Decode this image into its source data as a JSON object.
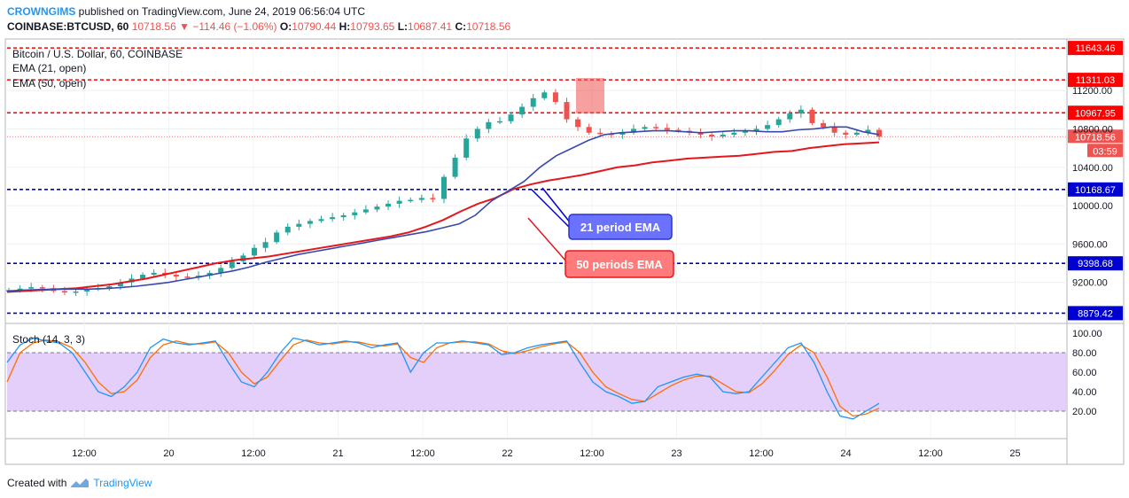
{
  "header": {
    "author": "CROWNGIMS",
    "published_text": "published on TradingView.com, June 24, 2019 06:56:04 UTC",
    "symbol": "COINBASE:BTCUSD, 60",
    "last": "10718.56",
    "arrow": "▼",
    "change": "−114.46 (−1.06%)",
    "o_label": "O:",
    "o_value": "10790.44",
    "h_label": "H:",
    "h_value": "10793.65",
    "l_label": "L:",
    "l_value": "10687.41",
    "c_label": "C:",
    "c_value": "10718.56"
  },
  "legend": {
    "title": "Bitcoin / U.S. Dollar, 60, COINBASE",
    "ema21": "EMA (21, open)",
    "ema50": "EMA (50, open)",
    "stoch": "Stoch (14, 3, 3)"
  },
  "annotations": {
    "ema21_label": "21 period EMA",
    "ema50_label": "50 periods EMA"
  },
  "footer": {
    "created_with": "Created with",
    "brand": "TradingView"
  },
  "colors": {
    "up": "#26a69a",
    "down": "#ef5350",
    "ema21": "#3949ab",
    "ema50": "#e5171d",
    "resistance": "#ff0000",
    "support": "#0000cc",
    "stoch_k": "#2196f3",
    "stoch_d": "#ff6d00",
    "stoch_band": "#e1c9fa"
  },
  "chart_data": [
    {
      "type": "candlestick",
      "timeframe": "60",
      "x_ticks": [
        "12:00",
        "20",
        "12:00",
        "21",
        "12:00",
        "22",
        "12:00",
        "23",
        "12:00",
        "24",
        "12:00",
        "25"
      ],
      "y_ticks": [
        9200.0,
        9600.0,
        10000.0,
        10400.0,
        10800.0,
        11200.0
      ],
      "ylim": [
        8800,
        11700
      ],
      "horizontal_levels": [
        {
          "value": 11643.46,
          "label": "11643.46",
          "kind": "resistance"
        },
        {
          "value": 11311.03,
          "label": "11311.03",
          "kind": "resistance"
        },
        {
          "value": 10967.95,
          "label": "10967.95",
          "kind": "resistance"
        },
        {
          "value": 10168.67,
          "label": "10168.67",
          "kind": "support"
        },
        {
          "value": 9398.68,
          "label": "9398.68",
          "kind": "support"
        },
        {
          "value": 8879.42,
          "label": "8879.42",
          "kind": "support"
        }
      ],
      "last_price": {
        "value": 10718.56,
        "label": "10718.56",
        "countdown": "03:59"
      },
      "close_series_approx": [
        9120,
        9135,
        9150,
        9140,
        9110,
        9095,
        9105,
        9130,
        9140,
        9160,
        9200,
        9240,
        9280,
        9300,
        9280,
        9260,
        9250,
        9270,
        9300,
        9350,
        9420,
        9480,
        9560,
        9620,
        9720,
        9780,
        9810,
        9840,
        9860,
        9880,
        9900,
        9930,
        9960,
        9990,
        10020,
        10050,
        10060,
        10080,
        10070,
        10300,
        10500,
        10700,
        10800,
        10870,
        10880,
        10950,
        11030,
        11120,
        11180,
        11080,
        10900,
        10820,
        10760,
        10750,
        10740,
        10760,
        10800,
        10820,
        10810,
        10790,
        10780,
        10760,
        10740,
        10720,
        10740,
        10760,
        10780,
        10800,
        10840,
        10900,
        10960,
        11000,
        10860,
        10820,
        10760,
        10740,
        10760,
        10790,
        10718.56
      ],
      "ema21_approx": [
        9110,
        9120,
        9125,
        9130,
        9130,
        9130,
        9135,
        9145,
        9160,
        9180,
        9200,
        9230,
        9260,
        9290,
        9320,
        9360,
        9410,
        9450,
        9490,
        9520,
        9550,
        9580,
        9610,
        9640,
        9670,
        9700,
        9730,
        9770,
        9810,
        9900,
        10050,
        10150,
        10250,
        10400,
        10520,
        10600,
        10680,
        10740,
        10760,
        10770,
        10780,
        10780,
        10770,
        10760,
        10770,
        10780,
        10780,
        10770,
        10770,
        10790,
        10800,
        10820,
        10820,
        10770,
        10740
      ],
      "ema50_approx": [
        9100,
        9110,
        9120,
        9130,
        9140,
        9160,
        9180,
        9210,
        9240,
        9280,
        9320,
        9360,
        9400,
        9430,
        9450,
        9470,
        9500,
        9530,
        9560,
        9590,
        9620,
        9650,
        9680,
        9720,
        9780,
        9850,
        9940,
        10020,
        10080,
        10170,
        10220,
        10260,
        10290,
        10320,
        10360,
        10400,
        10420,
        10450,
        10470,
        10490,
        10500,
        10510,
        10520,
        10540,
        10560,
        10570,
        10600,
        10620,
        10640,
        10650,
        10660
      ]
    },
    {
      "type": "line",
      "title": "Stoch (14, 3, 3)",
      "y_ticks": [
        20.0,
        40.0,
        60.0,
        80.0,
        100.0
      ],
      "ylim": [
        0,
        100
      ],
      "bands": [
        20,
        80
      ],
      "series": [
        {
          "name": "%K",
          "values": [
            70,
            88,
            95,
            92,
            90,
            80,
            60,
            40,
            35,
            45,
            60,
            85,
            94,
            90,
            88,
            90,
            92,
            70,
            50,
            45,
            60,
            80,
            95,
            92,
            88,
            90,
            92,
            90,
            85,
            88,
            90,
            60,
            80,
            90,
            90,
            92,
            90,
            88,
            78,
            80,
            85,
            88,
            90,
            92,
            70,
            50,
            40,
            35,
            28,
            30,
            45,
            50,
            55,
            58,
            55,
            40,
            38,
            40,
            55,
            70,
            85,
            90,
            70,
            40,
            15,
            12,
            20,
            28
          ]
        },
        {
          "name": "%D",
          "values": [
            50,
            80,
            90,
            93,
            91,
            85,
            70,
            50,
            38,
            40,
            52,
            75,
            88,
            92,
            89,
            89,
            91,
            80,
            60,
            48,
            55,
            72,
            88,
            93,
            90,
            89,
            91,
            91,
            88,
            87,
            89,
            75,
            70,
            85,
            90,
            91,
            91,
            89,
            82,
            79,
            82,
            86,
            89,
            91,
            80,
            60,
            45,
            38,
            32,
            30,
            38,
            46,
            52,
            56,
            56,
            48,
            40,
            39,
            48,
            62,
            78,
            88,
            80,
            55,
            25,
            15,
            17,
            23
          ]
        }
      ]
    }
  ]
}
